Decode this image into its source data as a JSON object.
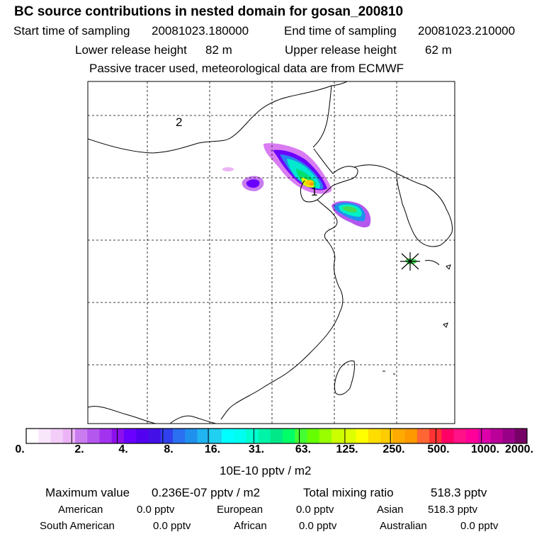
{
  "header": {
    "title": "BC  source contributions in nested domain for gosan_200810",
    "start_label": "Start time of sampling",
    "start_value": "20081023.180000",
    "end_label": "End time of sampling",
    "end_value": "20081023.210000",
    "lower_label": "Lower release height",
    "lower_value": "82 m",
    "upper_label": "Upper release height",
    "upper_value": "62 m",
    "subtitle": "Passive tracer used, meteorological data are from ECMWF"
  },
  "map": {
    "point_labels": [
      "2",
      "1"
    ],
    "receptor": "Gosan"
  },
  "colorbar": {
    "tick_labels": [
      "0.",
      "2.",
      "4.",
      "8.",
      "16.",
      "31.",
      "63.",
      "125.",
      "250.",
      "500.",
      "1000.",
      "2000."
    ],
    "units": "10E-10 pptv / m2",
    "colors": [
      "#ffffff",
      "#f8e6fb",
      "#f2cdf8",
      "#ebb4f5",
      "#c97cf0",
      "#b457ee",
      "#a332ee",
      "#8c10ee",
      "#6a00ff",
      "#5400f0",
      "#4410e8",
      "#3040ee",
      "#2a70f0",
      "#2090ee",
      "#20b4f0",
      "#20d0f0",
      "#00ffff",
      "#00fff0",
      "#00ffd0",
      "#00f4a8",
      "#00e888",
      "#00ff66",
      "#44ff33",
      "#66ff00",
      "#99ff00",
      "#ccff00",
      "#ddff00",
      "#ffff00",
      "#ffdd00",
      "#ffcc00",
      "#ffaa00",
      "#ff9900",
      "#ff6633",
      "#ff3333",
      "#ff0066",
      "#ff1188",
      "#ff0099",
      "#dd00aa",
      "#bb0099",
      "#990088",
      "#770066"
    ]
  },
  "summary": {
    "max_label": "Maximum value",
    "max_value": "0.236E-07 pptv / m2",
    "total_label": "Total mixing ratio",
    "total_value": "518.3 pptv",
    "american_label": "American",
    "american_value": "0.0 pptv",
    "european_label": "European",
    "european_value": "0.0 pptv",
    "asian_label": "Asian",
    "asian_value": "518.3 pptv",
    "south_american_label": "South American",
    "south_american_value": "0.0 pptv",
    "african_label": "African",
    "african_value": "0.0 pptv",
    "australian_label": "Australian",
    "australian_value": "0.0 pptv"
  }
}
